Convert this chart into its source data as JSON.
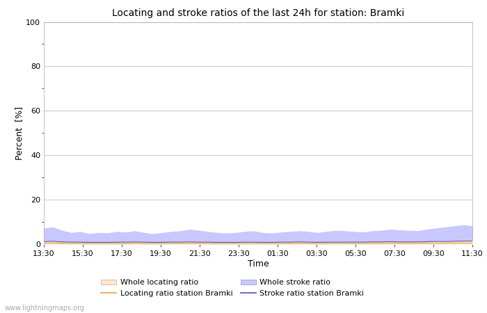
{
  "title": "Locating and stroke ratios of the last 24h for station: Bramki",
  "xlabel": "Time",
  "ylabel": "Percent  [%]",
  "ylim": [
    0,
    100
  ],
  "yticks": [
    0,
    20,
    40,
    60,
    80,
    100
  ],
  "xtick_labels": [
    "13:30",
    "15:30",
    "17:30",
    "19:30",
    "21:30",
    "23:30",
    "01:30",
    "03:30",
    "05:30",
    "07:30",
    "09:30",
    "11:30"
  ],
  "background_color": "#ffffff",
  "plot_bg_color": "#ffffff",
  "grid_color": "#cccccc",
  "watermark": "www.lightningmaps.org",
  "whole_stroke_color_fill": "#c8c8ff",
  "whole_locating_color_fill": "#ffe8d0",
  "station_locating_color": "#e8a040",
  "station_stroke_color": "#5050b0",
  "stroke_ratio_data": [
    7,
    7.5,
    6,
    5,
    5.5,
    4.5,
    5,
    4.8,
    5.5,
    5.2,
    5.8,
    5,
    4.5,
    5,
    5.5,
    5.8,
    6.5,
    6,
    5.5,
    5,
    4.8,
    5,
    5.5,
    5.8,
    5,
    4.8,
    5.2,
    5.5,
    5.8,
    5.5,
    5,
    5.5,
    6,
    5.8,
    5.5,
    5.2,
    5.8,
    6,
    6.5,
    6.2,
    6,
    5.8,
    6.5,
    7,
    7.5,
    8,
    8.5,
    8
  ],
  "locating_ratio_data": [
    1.5,
    1.5,
    1.2,
    1.0,
    1.0,
    0.8,
    0.9,
    0.9,
    1.0,
    1.0,
    1.1,
    1.0,
    0.9,
    0.9,
    1.0,
    1.0,
    1.2,
    1.1,
    1.0,
    0.9,
    0.9,
    0.9,
    1.0,
    1.1,
    0.9,
    0.9,
    1.0,
    1.0,
    1.1,
    1.0,
    0.9,
    1.0,
    1.1,
    1.0,
    1.0,
    1.0,
    1.1,
    1.1,
    1.2,
    1.2,
    1.1,
    1.1,
    1.2,
    1.3,
    1.4,
    1.5,
    1.6,
    1.6
  ],
  "station_stroke_data": [
    1.2,
    1.3,
    1.0,
    0.9,
    0.9,
    0.8,
    0.8,
    0.8,
    0.9,
    0.9,
    1.0,
    0.9,
    0.8,
    0.8,
    0.9,
    0.9,
    1.0,
    0.9,
    0.9,
    0.8,
    0.8,
    0.8,
    0.9,
    0.9,
    0.8,
    0.8,
    0.9,
    0.9,
    1.0,
    0.9,
    0.8,
    0.9,
    0.9,
    0.9,
    0.9,
    0.9,
    1.0,
    1.0,
    1.1,
    1.0,
    1.0,
    1.0,
    1.1,
    1.2,
    1.2,
    1.3,
    1.4,
    1.4
  ],
  "station_locating_data": [
    0.5,
    0.5,
    0.4,
    0.3,
    0.3,
    0.3,
    0.3,
    0.3,
    0.3,
    0.3,
    0.4,
    0.3,
    0.3,
    0.3,
    0.3,
    0.3,
    0.4,
    0.4,
    0.3,
    0.3,
    0.3,
    0.3,
    0.3,
    0.4,
    0.3,
    0.3,
    0.3,
    0.3,
    0.4,
    0.3,
    0.3,
    0.3,
    0.4,
    0.3,
    0.3,
    0.3,
    0.4,
    0.4,
    0.4,
    0.4,
    0.4,
    0.4,
    0.4,
    0.4,
    0.5,
    0.5,
    0.5,
    0.5
  ]
}
